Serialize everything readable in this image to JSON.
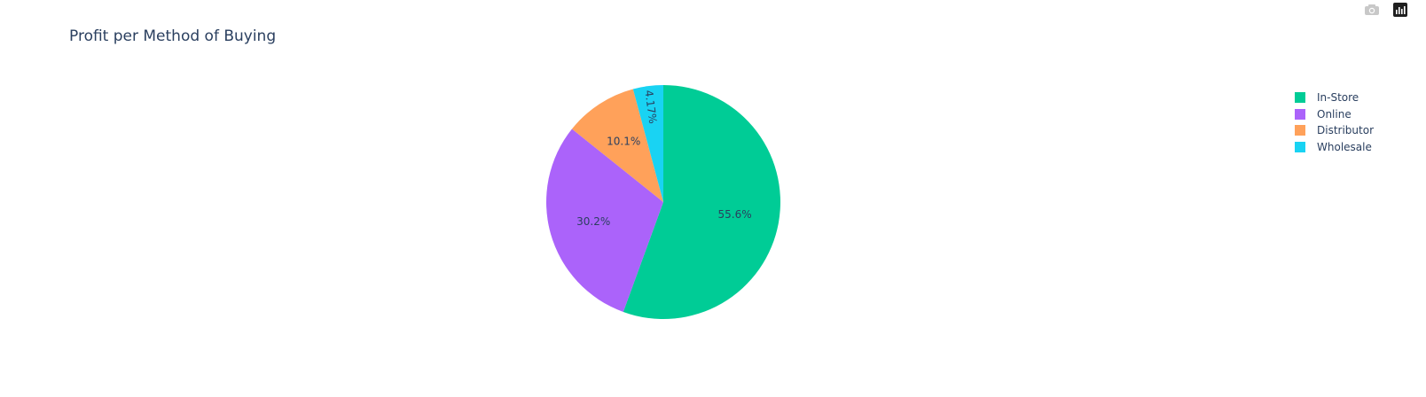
{
  "chart_data": {
    "type": "pie",
    "title": "Profit per Method of Buying",
    "categories": [
      "In-Store",
      "Online",
      "Distributor",
      "Wholesale"
    ],
    "values": [
      55.6,
      30.2,
      10.1,
      4.17
    ],
    "labels": [
      "55.6%",
      "30.2%",
      "10.1%",
      "4.17%"
    ],
    "colors": [
      "#00cc96",
      "#ab63fa",
      "#ffa15a",
      "#19d3f3"
    ],
    "direction": "clockwise",
    "legend_placement": "top-right"
  },
  "modebar": {
    "camera_icon": "camera-icon",
    "plotly_icon": "plotly-logo-icon"
  }
}
